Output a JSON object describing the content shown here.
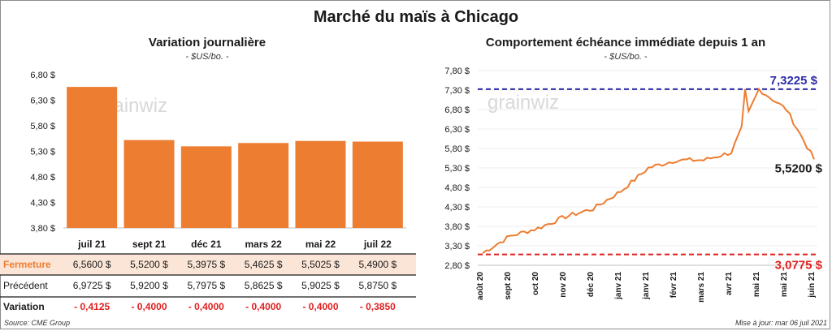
{
  "title": "Marché du maïs à Chicago",
  "left_panel": {
    "subtitle": "Variation journalière",
    "unit": "- $US/bo. -",
    "row_labels": {
      "close": "Fermeture",
      "prev": "Précédent",
      "change": "Variation"
    }
  },
  "right_panel": {
    "subtitle": "Comportement échéance immédiate depuis 1 an",
    "unit": "- $US/bo. -"
  },
  "watermark": "grainwiz",
  "source": "Source: CME Group",
  "updated": "Mise à jour: mar 06 juil 2021",
  "colors": {
    "bar": "#ed7d31",
    "line": "#ed7d31",
    "max_line": "#2e2ea8",
    "min_line": "#e02020",
    "negative": "#e02020",
    "close_row_bg": "#fbe5d6"
  },
  "chart_data": [
    {
      "type": "bar",
      "title": "Variation journalière",
      "unit_label": "- $US/bo. -",
      "categories": [
        "juil 21",
        "sept 21",
        "déc 21",
        "mars 22",
        "mai 22",
        "juil 22"
      ],
      "values": [
        6.56,
        5.52,
        5.3975,
        5.4625,
        5.5025,
        5.49
      ],
      "ylim": [
        3.8,
        6.8
      ],
      "yticks": [
        "6,80 $",
        "6,30 $",
        "5,80 $",
        "5,30 $",
        "4,80 $",
        "4,30 $",
        "3,80 $"
      ],
      "table": {
        "close": [
          "6,5600 $",
          "5,5200 $",
          "5,3975 $",
          "5,4625 $",
          "5,5025 $",
          "5,4900 $"
        ],
        "prev": [
          "6,9725 $",
          "5,9200 $",
          "5,7975 $",
          "5,8625 $",
          "5,9025 $",
          "5,8750 $"
        ],
        "change": [
          "- 0,4125",
          "- 0,4000",
          "- 0,4000",
          "- 0,4000",
          "- 0,4000",
          "- 0,3850"
        ]
      }
    },
    {
      "type": "line",
      "title": "Comportement échéance immédiate depuis 1 an",
      "unit_label": "- $US/bo. -",
      "x": [
        "août 20",
        "sept 20",
        "oct 20",
        "nov 20",
        "déc 20",
        "janv 21",
        "janv 21",
        "févr 21",
        "mars 21",
        "avr 21",
        "mai 21",
        "mai 21",
        "juin 21"
      ],
      "y": [
        3.12,
        3.55,
        3.75,
        4.05,
        4.25,
        4.7,
        5.3,
        5.5,
        5.5,
        5.7,
        7.32,
        6.8,
        5.52
      ],
      "ylim": [
        2.8,
        7.8
      ],
      "yticks": [
        "7,80 $",
        "7,30 $",
        "6,80 $",
        "6,30 $",
        "5,80 $",
        "5,30 $",
        "4,80 $",
        "4,30 $",
        "3,80 $",
        "3,30 $",
        "2,80 $"
      ],
      "max": 7.3225,
      "min": 3.0775,
      "last": 5.52,
      "max_label": "7,3225 $",
      "min_label": "3,0775 $",
      "last_label": "5,5200 $"
    }
  ]
}
